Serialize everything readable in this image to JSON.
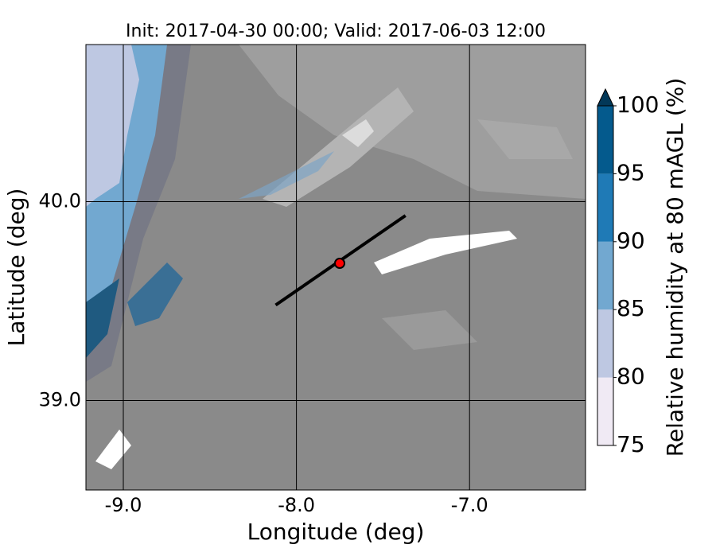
{
  "chart_data": {
    "type": "map",
    "title": "Init: 2017-04-30 00:00; Valid: 2017-06-03 12:00",
    "xlabel": "Longitude (deg)",
    "ylabel": "Latitude (deg)",
    "xlim": [
      -9.216,
      -6.33
    ],
    "ylim": [
      38.55,
      40.79
    ],
    "xticks": [
      {
        "value": -9,
        "label": "-9.0"
      },
      {
        "value": -8,
        "label": "-8.0"
      },
      {
        "value": -7,
        "label": "-7.0"
      }
    ],
    "yticks": [
      {
        "value": 39,
        "label": "39.0"
      },
      {
        "value": 40,
        "label": "40.0"
      }
    ],
    "grid": true,
    "cross_section": {
      "x": [
        -8.12,
        -7.37
      ],
      "y": [
        39.48,
        39.93
      ],
      "color": "#000000"
    },
    "point": {
      "x": -7.75,
      "y": 39.69,
      "color": "#ff0000"
    },
    "colorbar": {
      "label": "Relative humidity at 80 mAGL (%)",
      "ticks": [
        75,
        80,
        85,
        90,
        95,
        100
      ],
      "colors": [
        "#f0eaf4",
        "#bec8e2",
        "#72a8d0",
        "#1f7ab6",
        "#045a8d"
      ],
      "extend_color": "#023858"
    }
  }
}
